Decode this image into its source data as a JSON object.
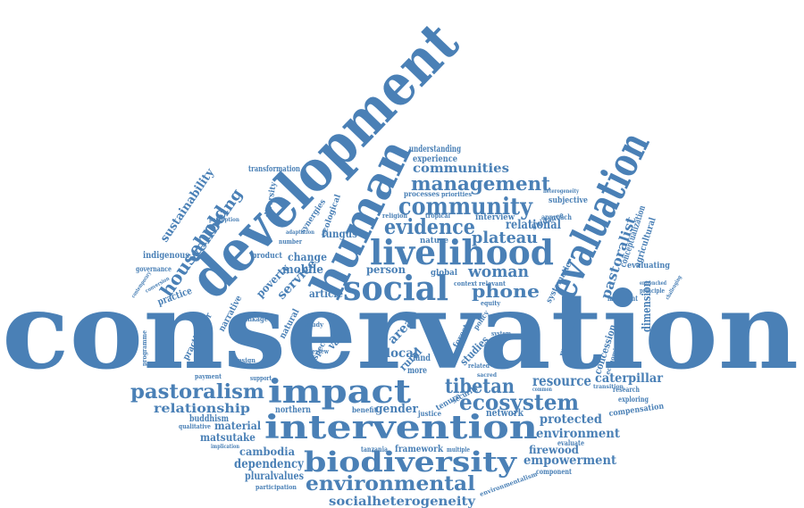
{
  "palette": {
    "accent": "#4a80b6",
    "background": "#ffffff"
  },
  "words": [
    {
      "id": "conservation",
      "text": "conservation"
    },
    {
      "id": "development",
      "text": "development"
    },
    {
      "id": "human",
      "text": "human"
    },
    {
      "id": "livelihood",
      "text": "livelihood"
    },
    {
      "id": "social",
      "text": "social"
    },
    {
      "id": "evaluation",
      "text": "evaluation"
    },
    {
      "id": "impact",
      "text": "impact"
    },
    {
      "id": "intervention",
      "text": "intervention"
    },
    {
      "id": "biodiversity",
      "text": "biodiversity"
    },
    {
      "id": "ecosystem",
      "text": "ecosystem"
    },
    {
      "id": "pastoralism",
      "text": "pastoralism"
    },
    {
      "id": "environmental",
      "text": "environmental"
    },
    {
      "id": "community",
      "text": "community"
    },
    {
      "id": "management",
      "text": "management"
    },
    {
      "id": "communities",
      "text": "communities"
    },
    {
      "id": "evidence",
      "text": "evidence"
    },
    {
      "id": "household",
      "text": "household"
    },
    {
      "id": "wellbeing",
      "text": "wellbeing"
    },
    {
      "id": "tibetan",
      "text": "tibetan"
    },
    {
      "id": "woman",
      "text": "woman"
    },
    {
      "id": "phone",
      "text": "phone"
    },
    {
      "id": "plateau",
      "text": "plateau"
    },
    {
      "id": "relational",
      "text": "relational"
    },
    {
      "id": "relationship",
      "text": "relationship"
    },
    {
      "id": "resource",
      "text": "resource"
    },
    {
      "id": "caterpillar",
      "text": "caterpillar"
    },
    {
      "id": "protected",
      "text": "protected"
    },
    {
      "id": "environment",
      "text": "environment"
    },
    {
      "id": "firewood",
      "text": "firewood"
    },
    {
      "id": "empowerment",
      "text": "empowerment"
    },
    {
      "id": "dependency",
      "text": "dependency"
    },
    {
      "id": "cambodia",
      "text": "cambodia"
    },
    {
      "id": "matsutake",
      "text": "matsutake"
    },
    {
      "id": "pluralvalues",
      "text": "pluralvalues"
    },
    {
      "id": "socialheterogeneity",
      "text": "socialheterogeneity"
    },
    {
      "id": "sustainability",
      "text": "sustainability"
    },
    {
      "id": "mobile",
      "text": "mobile"
    },
    {
      "id": "change",
      "text": "change"
    },
    {
      "id": "service",
      "text": "service"
    },
    {
      "id": "poverty",
      "text": "poverty"
    },
    {
      "id": "narrative",
      "text": "narrative"
    },
    {
      "id": "practitioner",
      "text": "practitioner"
    },
    {
      "id": "article",
      "text": "article"
    },
    {
      "id": "person",
      "text": "person"
    },
    {
      "id": "local",
      "text": "local"
    },
    {
      "id": "area",
      "text": "area"
    },
    {
      "id": "rural",
      "text": "rural"
    },
    {
      "id": "land",
      "text": "land"
    },
    {
      "id": "more",
      "text": "more"
    },
    {
      "id": "gender",
      "text": "gender"
    },
    {
      "id": "network",
      "text": "network"
    },
    {
      "id": "pastoralist",
      "text": "pastoralist"
    },
    {
      "id": "conceptualization",
      "text": "conceptualization"
    },
    {
      "id": "agricultural",
      "text": "agricultural"
    },
    {
      "id": "dimension",
      "text": "dimension"
    },
    {
      "id": "concession",
      "text": "concession"
    },
    {
      "id": "method",
      "text": "method"
    },
    {
      "id": "understanding",
      "text": "understanding"
    },
    {
      "id": "experience",
      "text": "experience"
    },
    {
      "id": "transformation",
      "text": "transformation"
    },
    {
      "id": "diversity",
      "text": "diversity"
    },
    {
      "id": "indigenous",
      "text": "indigenous"
    },
    {
      "id": "governance",
      "text": "governance"
    },
    {
      "id": "practice",
      "text": "practice"
    },
    {
      "id": "product",
      "text": "product"
    },
    {
      "id": "fungus",
      "text": "fungus"
    },
    {
      "id": "nature",
      "text": "nature"
    },
    {
      "id": "interview",
      "text": "interview"
    },
    {
      "id": "guidance",
      "text": "guidance"
    },
    {
      "id": "approach",
      "text": "approach"
    },
    {
      "id": "subjective",
      "text": "subjective"
    },
    {
      "id": "processes",
      "text": "processes"
    },
    {
      "id": "priorities",
      "text": "priorities"
    },
    {
      "id": "framework",
      "text": "framework"
    },
    {
      "id": "tanzania",
      "text": "tanzania"
    },
    {
      "id": "multiple",
      "text": "multiple"
    },
    {
      "id": "component",
      "text": "component"
    },
    {
      "id": "evaluate",
      "text": "evaluate"
    },
    {
      "id": "compensation",
      "text": "compensation"
    },
    {
      "id": "exploring",
      "text": "exploring"
    },
    {
      "id": "research",
      "text": "research"
    },
    {
      "id": "evaluating",
      "text": "evaluating"
    },
    {
      "id": "important",
      "text": "important"
    },
    {
      "id": "principle",
      "text": "principle"
    },
    {
      "id": "economic",
      "text": "economic"
    },
    {
      "id": "buddhism",
      "text": "buddhism"
    },
    {
      "id": "material",
      "text": "material"
    },
    {
      "id": "qualitative",
      "text": "qualitative"
    },
    {
      "id": "northern",
      "text": "northern"
    },
    {
      "id": "justice",
      "text": "justice"
    },
    {
      "id": "benefit",
      "text": "benefit"
    },
    {
      "id": "tenure",
      "text": "tenure"
    },
    {
      "id": "security",
      "text": "security"
    },
    {
      "id": "studies",
      "text": "studies"
    },
    {
      "id": "forest",
      "text": "forest"
    },
    {
      "id": "global",
      "text": "global"
    },
    {
      "id": "context",
      "text": "context"
    },
    {
      "id": "relevant",
      "text": "relevant"
    },
    {
      "id": "equity",
      "text": "equity"
    },
    {
      "id": "systematic",
      "text": "systematic"
    },
    {
      "id": "participation",
      "text": "participation"
    },
    {
      "id": "environmentalism",
      "text": "environmentalism"
    },
    {
      "id": "support",
      "text": "support"
    },
    {
      "id": "payment",
      "text": "payment"
    },
    {
      "id": "design",
      "text": "design"
    },
    {
      "id": "natural",
      "text": "natural"
    },
    {
      "id": "value",
      "text": "value"
    },
    {
      "id": "aspect",
      "text": "aspect"
    },
    {
      "id": "review",
      "text": "review"
    },
    {
      "id": "china",
      "text": "china"
    },
    {
      "id": "study",
      "text": "study"
    },
    {
      "id": "linkage",
      "text": "linkage"
    },
    {
      "id": "programme",
      "text": "programme"
    },
    {
      "id": "implication",
      "text": "implication"
    },
    {
      "id": "ecological",
      "text": "ecological"
    },
    {
      "id": "synergies",
      "text": "synergies"
    },
    {
      "id": "religion",
      "text": "religion"
    },
    {
      "id": "tropical",
      "text": "tropical"
    },
    {
      "id": "trade",
      "text": "trade"
    },
    {
      "id": "contemporary",
      "text": "contemporary"
    },
    {
      "id": "conversion",
      "text": "conversion"
    },
    {
      "id": "perception",
      "text": "perception"
    },
    {
      "id": "number",
      "text": "number"
    },
    {
      "id": "adaptation",
      "text": "adaptation"
    },
    {
      "id": "transition",
      "text": "transition"
    },
    {
      "id": "common",
      "text": "common"
    },
    {
      "id": "policy",
      "text": "policy"
    },
    {
      "id": "system",
      "text": "system"
    },
    {
      "id": "related",
      "text": "related"
    },
    {
      "id": "sacred",
      "text": "sacred"
    },
    {
      "id": "heterogeneity",
      "text": "heterogeneity"
    },
    {
      "id": "entrenched",
      "text": "entrenched"
    },
    {
      "id": "challenging",
      "text": "challenging"
    }
  ]
}
